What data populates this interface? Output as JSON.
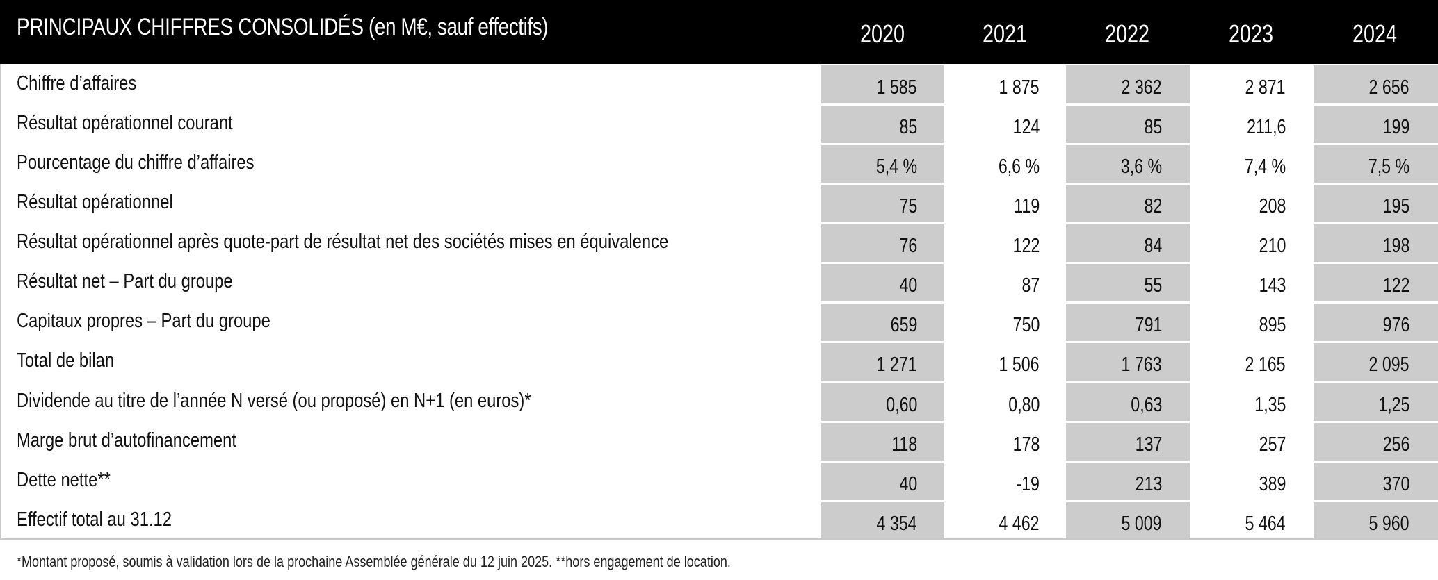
{
  "header": {
    "title_caps": "PRINCIPAUX CHIFFRES CONSOLIDÉS",
    "title_units": "(en M€, sauf effectifs)",
    "years": [
      "2020",
      "2021",
      "2022",
      "2023",
      "2024"
    ]
  },
  "table": {
    "shaded_columns": [
      "2020",
      "2022",
      "2024"
    ],
    "shade_color": "#cccccc",
    "rows": [
      {
        "label": "Chiffre d’affaires",
        "values": [
          "1 585",
          "1 875",
          "2 362",
          "2 871",
          "2 656"
        ]
      },
      {
        "label": "Résultat opérationnel courant",
        "values": [
          "85",
          "124",
          "85",
          "211,6",
          "199"
        ]
      },
      {
        "label": "Pourcentage du chiffre d’affaires",
        "values": [
          "5,4 %",
          "6,6 %",
          "3,6 %",
          "7,4 %",
          "7,5 %"
        ]
      },
      {
        "label": "Résultat opérationnel",
        "values": [
          "75",
          "119",
          "82",
          "208",
          "195"
        ]
      },
      {
        "label": "Résultat opérationnel après quote-part de résultat net des sociétés mises en équivalence",
        "values": [
          "76",
          "122",
          "84",
          "210",
          "198"
        ]
      },
      {
        "label": "Résultat net – Part du groupe",
        "values": [
          "40",
          "87",
          "55",
          "143",
          "122"
        ]
      },
      {
        "label": "Capitaux propres – Part du groupe",
        "values": [
          "659",
          "750",
          "791",
          "895",
          "976"
        ]
      },
      {
        "label": "Total de bilan",
        "values": [
          "1 271",
          "1 506",
          "1 763",
          "2 165",
          "2 095"
        ]
      },
      {
        "label": "Dividende au titre de l’année N versé (ou proposé) en N+1 (en euros)*",
        "values": [
          "0,60",
          "0,80",
          "0,63",
          "1,35",
          "1,25"
        ]
      },
      {
        "label": "Marge brut d’autofinancement",
        "values": [
          "118",
          "178",
          "137",
          "257",
          "256"
        ]
      },
      {
        "label": "Dette nette**",
        "values": [
          "40",
          "-19",
          "213",
          "389",
          "370"
        ]
      },
      {
        "label": "Effectif total au 31.12",
        "values": [
          "4 354",
          "4 462",
          "5 009",
          "5 464",
          "5 960"
        ]
      }
    ]
  },
  "footnote": "*Montant proposé, soumis à validation lors de la prochaine Assemblée générale du 12 juin 2025. **hors engagement de location."
}
